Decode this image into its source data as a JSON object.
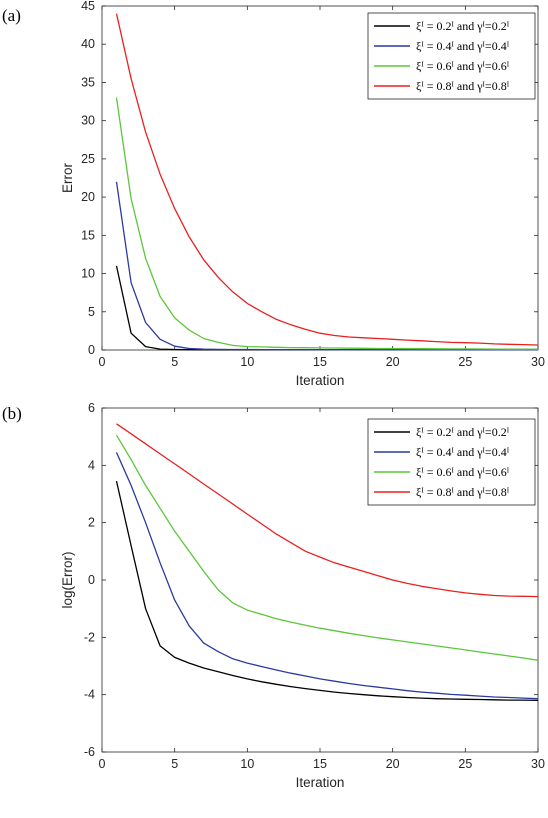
{
  "panels": [
    {
      "label": "(a)"
    },
    {
      "label": "(b)"
    }
  ],
  "legend_entries": [
    "ξᴵ = 0.2ᴵ and γᴵ=0.2ᴵ",
    "ξᴵ = 0.4ᴵ and γᴵ=0.4ᴵ",
    "ξᴵ = 0.6ᴵ and γᴵ=0.6ᴵ",
    "ξᴵ = 0.8ᴵ and γᴵ=0.8ᴵ"
  ],
  "chart_data": [
    {
      "type": "line",
      "xlabel": "Iteration",
      "ylabel": "Error",
      "xlim": [
        0,
        30
      ],
      "ylim": [
        0,
        45
      ],
      "xticks": [
        0,
        5,
        10,
        15,
        20,
        25,
        30
      ],
      "yticks": [
        0,
        5,
        10,
        15,
        20,
        25,
        30,
        35,
        40,
        45
      ],
      "grid": false,
      "legend_position": "top-right",
      "x": [
        1,
        2,
        3,
        4,
        5,
        6,
        7,
        8,
        9,
        10,
        11,
        12,
        13,
        14,
        15,
        16,
        17,
        18,
        19,
        20,
        21,
        22,
        23,
        24,
        25,
        26,
        27,
        28,
        29,
        30
      ],
      "series": [
        {
          "name": "ξᴵ = 0.2ᴵ and γᴵ=0.2ᴵ",
          "color": "#000000",
          "values": [
            11,
            2.2,
            0.45,
            0.12,
            0.06,
            0.04,
            0.03,
            0.03,
            0.02,
            0.02,
            0.02,
            0.02,
            0.02,
            0.02,
            0.02,
            0.02,
            0.02,
            0.02,
            0.02,
            0.02,
            0.02,
            0.02,
            0.02,
            0.02,
            0.02,
            0.02,
            0.02,
            0.02,
            0.02,
            0.02
          ]
        },
        {
          "name": "ξᴵ = 0.4ᴵ and γᴵ=0.4ᴵ",
          "color": "#2b3a9e",
          "values": [
            22,
            8.8,
            3.6,
            1.4,
            0.5,
            0.2,
            0.11,
            0.08,
            0.07,
            0.06,
            0.05,
            0.045,
            0.04,
            0.035,
            0.03,
            0.03,
            0.03,
            0.03,
            0.03,
            0.03,
            0.03,
            0.03,
            0.03,
            0.03,
            0.03,
            0.03,
            0.03,
            0.03,
            0.03,
            0.03
          ]
        },
        {
          "name": "ξᴵ = 0.6ᴵ and γᴵ=0.6ᴵ",
          "color": "#5cc63a",
          "values": [
            33,
            19.8,
            12,
            7,
            4.2,
            2.6,
            1.5,
            1.0,
            0.6,
            0.45,
            0.4,
            0.35,
            0.32,
            0.3,
            0.28,
            0.26,
            0.24,
            0.22,
            0.2,
            0.19,
            0.18,
            0.17,
            0.16,
            0.15,
            0.14,
            0.13,
            0.12,
            0.11,
            0.1,
            0.1
          ]
        },
        {
          "name": "ξᴵ = 0.8ᴵ and γᴵ=0.8ᴵ",
          "color": "#e8201f",
          "values": [
            44,
            35.5,
            28.5,
            23,
            18.5,
            14.8,
            11.8,
            9.5,
            7.6,
            6.1,
            5.0,
            4.0,
            3.3,
            2.7,
            2.2,
            1.9,
            1.7,
            1.6,
            1.5,
            1.4,
            1.3,
            1.2,
            1.1,
            1.0,
            0.95,
            0.9,
            0.8,
            0.75,
            0.7,
            0.65
          ]
        }
      ]
    },
    {
      "type": "line",
      "xlabel": "Iteration",
      "ylabel": "log(Error)",
      "xlim": [
        0,
        30
      ],
      "ylim": [
        -6,
        6
      ],
      "xticks": [
        0,
        5,
        10,
        15,
        20,
        25,
        30
      ],
      "yticks": [
        -6,
        -4,
        -2,
        0,
        2,
        4,
        6
      ],
      "grid": false,
      "legend_position": "top-right",
      "x": [
        1,
        2,
        3,
        4,
        5,
        6,
        7,
        8,
        9,
        10,
        11,
        12,
        13,
        14,
        15,
        16,
        17,
        18,
        19,
        20,
        21,
        22,
        23,
        24,
        25,
        26,
        27,
        28,
        29,
        30
      ],
      "series": [
        {
          "name": "ξᴵ = 0.2ᴵ and γᴵ=0.2ᴵ",
          "color": "#000000",
          "values": [
            3.45,
            1.2,
            -1.0,
            -2.3,
            -2.7,
            -2.9,
            -3.07,
            -3.2,
            -3.33,
            -3.45,
            -3.55,
            -3.64,
            -3.72,
            -3.79,
            -3.85,
            -3.91,
            -3.96,
            -4.0,
            -4.04,
            -4.07,
            -4.1,
            -4.12,
            -4.14,
            -4.15,
            -4.16,
            -4.17,
            -4.18,
            -4.19,
            -4.19,
            -4.2
          ]
        },
        {
          "name": "ξᴵ = 0.4ᴵ and γᴵ=0.4ᴵ",
          "color": "#2b3a9e",
          "values": [
            4.45,
            3.3,
            2.0,
            0.6,
            -0.7,
            -1.6,
            -2.2,
            -2.5,
            -2.75,
            -2.9,
            -3.02,
            -3.14,
            -3.25,
            -3.35,
            -3.45,
            -3.53,
            -3.61,
            -3.68,
            -3.74,
            -3.8,
            -3.86,
            -3.91,
            -3.95,
            -3.99,
            -4.02,
            -4.05,
            -4.08,
            -4.1,
            -4.12,
            -4.14
          ]
        },
        {
          "name": "ξᴵ = 0.6ᴵ and γᴵ=0.6ᴵ",
          "color": "#5cc63a",
          "values": [
            5.05,
            4.2,
            3.3,
            2.5,
            1.7,
            1.0,
            0.3,
            -0.35,
            -0.8,
            -1.05,
            -1.2,
            -1.35,
            -1.47,
            -1.58,
            -1.68,
            -1.77,
            -1.86,
            -1.94,
            -2.02,
            -2.09,
            -2.16,
            -2.23,
            -2.3,
            -2.37,
            -2.44,
            -2.51,
            -2.58,
            -2.65,
            -2.72,
            -2.8
          ]
        },
        {
          "name": "ξᴵ = 0.8ᴵ and γᴵ=0.8ᴵ",
          "color": "#e8201f",
          "values": [
            5.45,
            5.1,
            4.75,
            4.4,
            4.05,
            3.7,
            3.35,
            3.0,
            2.65,
            2.3,
            1.95,
            1.6,
            1.3,
            1.0,
            0.8,
            0.6,
            0.45,
            0.3,
            0.15,
            0.0,
            -0.12,
            -0.22,
            -0.3,
            -0.38,
            -0.45,
            -0.5,
            -0.54,
            -0.56,
            -0.57,
            -0.58
          ]
        }
      ]
    }
  ]
}
